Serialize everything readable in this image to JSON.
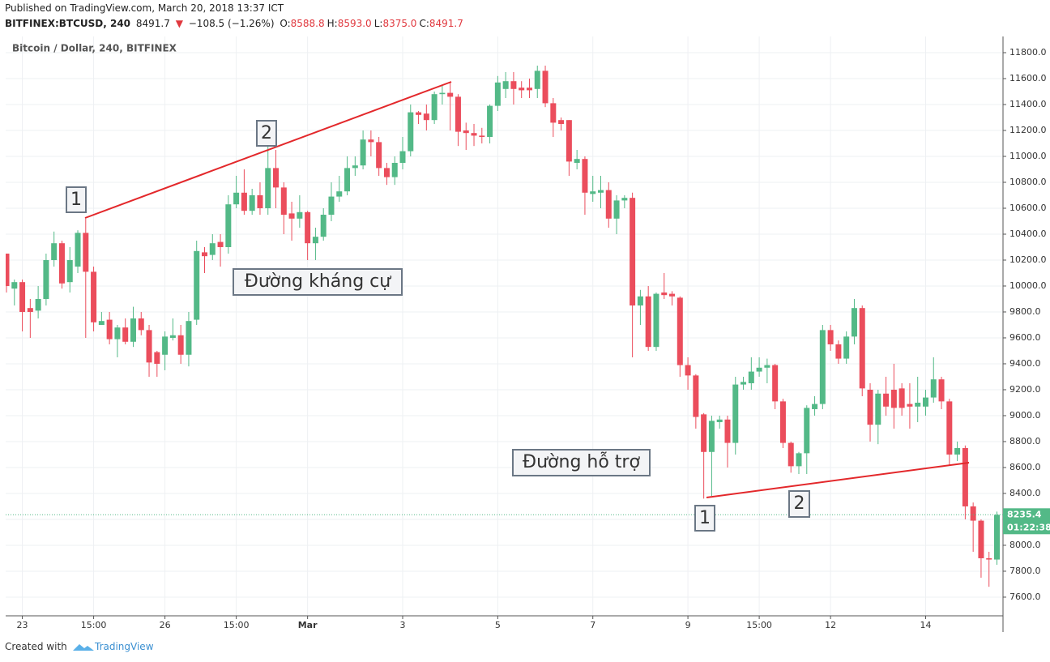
{
  "header": {
    "published": "Published on TradingView.com, March 20, 2018 13:37 ICT",
    "symbol": "BITFINEX:BTCUSD, 240",
    "price": "8491.7",
    "change": "−108.5 (−1.26%)",
    "ohlc": [
      {
        "key": "O:",
        "value": "8588.8"
      },
      {
        "key": "H:",
        "value": "8593.0"
      },
      {
        "key": "L:",
        "value": "8375.0"
      },
      {
        "key": "C:",
        "value": "8491.7"
      }
    ]
  },
  "footer": {
    "created_with": "Created with",
    "brand": "TradingView"
  },
  "chart_data": {
    "type": "candlestick",
    "title": "Bitcoin / Dollar, 240, BITFINEX",
    "up_color": "#53b987",
    "down_color": "#eb4d5c",
    "grid": true,
    "categories": [
      null,
      null,
      "23",
      null,
      null,
      null,
      null,
      null,
      null,
      null,
      null,
      "15:00",
      null,
      null,
      null,
      null,
      null,
      null,
      null,
      null,
      "26",
      null,
      null,
      null,
      null,
      null,
      null,
      null,
      null,
      "15:00",
      null,
      null,
      null,
      null,
      null,
      null,
      null,
      null,
      "Mar",
      null,
      null,
      null,
      null,
      null,
      null,
      null,
      null,
      null,
      null,
      null,
      "3",
      null,
      null,
      null,
      null,
      null,
      null,
      null,
      null,
      null,
      null,
      null,
      "5",
      null,
      null,
      null,
      null,
      null,
      null,
      null,
      null,
      null,
      null,
      null,
      "7",
      null,
      null,
      null,
      null,
      null,
      null,
      null,
      null,
      null,
      null,
      null,
      "9",
      null,
      null,
      null,
      null,
      null,
      null,
      null,
      null,
      "15:00",
      null,
      null,
      null,
      null,
      null,
      null,
      null,
      null,
      "12",
      null,
      null,
      null,
      null,
      null,
      null,
      null,
      null,
      null,
      null,
      null,
      "14",
      null,
      null,
      null,
      null,
      null,
      null,
      null,
      null,
      null
    ],
    "open": [
      10250,
      9980,
      10030,
      9830,
      9810,
      9900,
      10200,
      10330,
      10030,
      10150,
      10410,
      10110,
      9700,
      9740,
      9590,
      9680,
      9570,
      9750,
      9660,
      9490,
      9470,
      9600,
      9620,
      9470,
      9740,
      10260,
      10240,
      10340,
      10300,
      10630,
      10720,
      10580,
      10700,
      10600,
      10910,
      10760,
      10560,
      10520,
      10570,
      10330,
      10380,
      10550,
      10690,
      10730,
      10910,
      10930,
      11130,
      11110,
      10910,
      10840,
      10950,
      11040,
      11340,
      11330,
      11280,
      11480,
      11490,
      11460,
      11200,
      11180,
      11160,
      11150,
      11390,
      11520,
      11580,
      11530,
      11530,
      11520,
      11660,
      11410,
      11280,
      11280,
      10950,
      10980,
      10710,
      10720,
      10740,
      10520,
      10660,
      10680,
      9850,
      9920,
      9530,
      9950,
      9940,
      9910,
      9390,
      9310,
      9010,
      8720,
      8950,
      8970,
      8790,
      9240,
      9250,
      9340,
      9370,
      9390,
      9110,
      8790,
      8610,
      8710,
      9050,
      9090,
      9660,
      9550,
      9440,
      9610,
      9830,
      9200,
      8930,
      9170,
      9200,
      9210,
      9090,
      9070,
      9070,
      9140,
      9280,
      9110,
      8700,
      8750,
      8300,
      8190,
      7900,
      7890
    ],
    "high": [
      10250,
      10050,
      10050,
      9900,
      10000,
      10250,
      10420,
      10350,
      10300,
      10430,
      10520,
      10150,
      9800,
      9800,
      9700,
      9750,
      9840,
      9800,
      9700,
      9500,
      9650,
      9750,
      9700,
      9800,
      10350,
      10300,
      10400,
      10400,
      10700,
      10850,
      10900,
      10750,
      10800,
      11080,
      11050,
      10800,
      10650,
      10700,
      10580,
      10450,
      10600,
      10800,
      10850,
      11000,
      11000,
      11200,
      11200,
      11150,
      10950,
      11000,
      11150,
      11400,
      11350,
      11400,
      11500,
      11550,
      11570,
      11480,
      11260,
      11250,
      11220,
      11400,
      11620,
      11650,
      11650,
      11580,
      11600,
      11700,
      11700,
      11450,
      11300,
      11280,
      11050,
      11000,
      10850,
      10850,
      10800,
      10700,
      10700,
      10720,
      9970,
      10000,
      9950,
      10100,
      9960,
      9920,
      9450,
      9320,
      9020,
      9000,
      9000,
      9000,
      9300,
      9300,
      9450,
      9450,
      9440,
      9400,
      9130,
      8800,
      8720,
      9080,
      9150,
      9700,
      9700,
      9580,
      9650,
      9900,
      9850,
      9250,
      9200,
      9300,
      9400,
      9250,
      9250,
      9300,
      9200,
      9450,
      9300,
      9130,
      8800,
      8770,
      8330,
      8200,
      7950,
      8260
    ],
    "low": [
      9950,
      9850,
      9650,
      9600,
      9750,
      9850,
      10150,
      9980,
      9950,
      10100,
      9600,
      9650,
      9700,
      9550,
      9450,
      9550,
      9530,
      9620,
      9300,
      9300,
      9350,
      9580,
      9400,
      9380,
      9700,
      10100,
      10200,
      10150,
      10250,
      10600,
      10550,
      10550,
      10550,
      10550,
      10600,
      10400,
      10350,
      10450,
      10200,
      10200,
      10350,
      10500,
      10650,
      10700,
      10850,
      10900,
      11000,
      10850,
      10780,
      10780,
      10900,
      11000,
      11250,
      11200,
      11250,
      11400,
      11200,
      11080,
      11050,
      11080,
      11100,
      11100,
      11350,
      11450,
      11400,
      11450,
      11450,
      11450,
      11380,
      11150,
      11200,
      10850,
      10900,
      10550,
      10650,
      10600,
      10450,
      10400,
      10600,
      9450,
      9700,
      9500,
      9500,
      9900,
      9850,
      9300,
      9200,
      8900,
      8360,
      8380,
      8900,
      8600,
      8700,
      9200,
      9200,
      9300,
      9250,
      9050,
      8750,
      8560,
      8550,
      8550,
      9000,
      9050,
      9500,
      9400,
      9400,
      9550,
      9150,
      8800,
      8780,
      9000,
      8900,
      9000,
      8900,
      8950,
      9000,
      9100,
      9050,
      8620,
      8650,
      8200,
      7950,
      7750,
      7680,
      7850
    ],
    "close": [
      10000,
      10030,
      9800,
      9800,
      9900,
      10200,
      10330,
      10020,
      10200,
      10410,
      10110,
      9720,
      9730,
      9590,
      9680,
      9570,
      9750,
      9660,
      9410,
      9400,
      9610,
      9620,
      9470,
      9730,
      10270,
      10230,
      10330,
      10300,
      10630,
      10720,
      10580,
      10700,
      10600,
      10910,
      10760,
      10550,
      10520,
      10570,
      10330,
      10380,
      10550,
      10690,
      10730,
      10910,
      10930,
      11130,
      11110,
      10910,
      10840,
      10950,
      11040,
      11340,
      11320,
      11280,
      11480,
      11490,
      11460,
      11190,
      11180,
      11160,
      11150,
      11390,
      11570,
      11580,
      11520,
      11510,
      11510,
      11660,
      11410,
      11260,
      11250,
      10960,
      10980,
      10720,
      10730,
      10740,
      10520,
      10660,
      10680,
      9850,
      9920,
      9530,
      9940,
      9930,
      9920,
      9390,
      9310,
      8990,
      8720,
      8960,
      8970,
      8790,
      9240,
      9260,
      9340,
      9370,
      9390,
      9110,
      8790,
      8610,
      8710,
      9060,
      9090,
      9660,
      9550,
      9440,
      9610,
      9830,
      9210,
      8930,
      9170,
      9070,
      9060,
      9060,
      9070,
      9100,
      9140,
      9280,
      9110,
      8700,
      8750,
      8300,
      8190,
      7900,
      7890,
      8235.4
    ],
    "ylim": [
      7456,
      11925
    ],
    "yticks": [
      {
        "value": 7600,
        "label": "7600.0"
      },
      {
        "value": 7800,
        "label": "7800.0"
      },
      {
        "value": 8000,
        "label": "8000.0"
      },
      {
        "value": 8200,
        "label": "8200.0"
      },
      {
        "value": 8400,
        "label": "8400.0"
      },
      {
        "value": 8600,
        "label": "8600.0"
      },
      {
        "value": 8800,
        "label": "8800.0"
      },
      {
        "value": 9000,
        "label": "9000.0"
      },
      {
        "value": 9200,
        "label": "9200.0"
      },
      {
        "value": 9400,
        "label": "9400.0"
      },
      {
        "value": 9600,
        "label": "9600.0"
      },
      {
        "value": 9800,
        "label": "9800.0"
      },
      {
        "value": 10000,
        "label": "10000.0"
      },
      {
        "value": 10200,
        "label": "10200.0"
      },
      {
        "value": 10400,
        "label": "10400.0"
      },
      {
        "value": 10600,
        "label": "10600.0"
      },
      {
        "value": 10800,
        "label": "10800.0"
      },
      {
        "value": 11000,
        "label": "11000.0"
      },
      {
        "value": 11200,
        "label": "11200.0"
      },
      {
        "value": 11400,
        "label": "11400.0"
      },
      {
        "value": 11600,
        "label": "11600.0"
      },
      {
        "value": 11800,
        "label": "11800.0"
      }
    ],
    "last_price": 8235.4,
    "countdown": "01:22:38",
    "annotations": [
      "1",
      "2",
      "Đường kháng cự",
      "Đường hỗ trợ",
      "1",
      "2"
    ]
  }
}
